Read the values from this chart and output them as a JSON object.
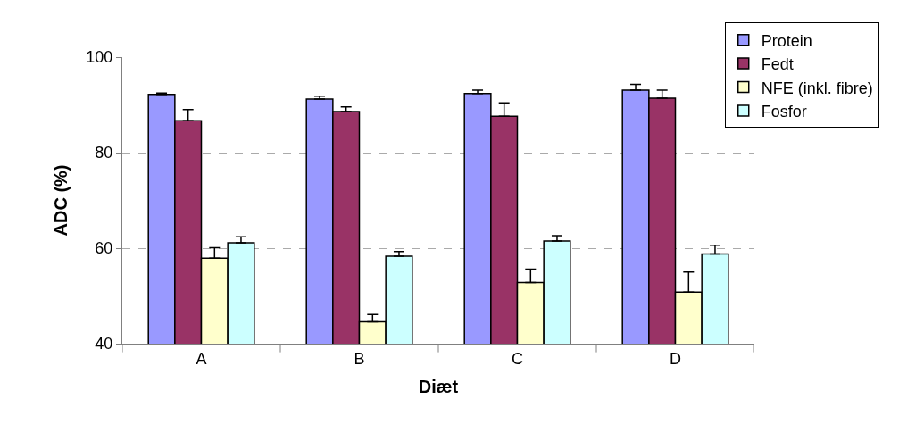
{
  "chart_data": {
    "type": "bar",
    "xlabel": "Diæt",
    "ylabel": "ADC (%)",
    "categories": [
      "A",
      "B",
      "C",
      "D"
    ],
    "series": [
      {
        "name": "Protein",
        "color": "#9999ff",
        "values": [
          92.2,
          91.2,
          92.4,
          93.1
        ],
        "errors": [
          [
            92.2,
            92.5
          ],
          [
            91.2,
            91.8
          ],
          [
            92.4,
            93.1
          ],
          [
            93.1,
            94.3
          ]
        ]
      },
      {
        "name": "Fedt",
        "color": "#993366",
        "values": [
          86.7,
          88.6,
          87.6,
          91.4
        ],
        "errors": [
          [
            86.7,
            89.0
          ],
          [
            88.6,
            89.6
          ],
          [
            87.6,
            90.4
          ],
          [
            91.4,
            93.1
          ]
        ]
      },
      {
        "name": "NFE (inkl. fibre)",
        "color": "#ffffcc",
        "values": [
          57.9,
          44.6,
          52.8,
          50.8
        ],
        "errors": [
          [
            57.9,
            60.1
          ],
          [
            44.6,
            46.1
          ],
          [
            52.8,
            55.6
          ],
          [
            50.8,
            55.0
          ]
        ]
      },
      {
        "name": "Fosfor",
        "color": "#ccffff",
        "values": [
          61.1,
          58.3,
          61.5,
          58.8
        ],
        "errors": [
          [
            61.1,
            62.4
          ],
          [
            58.3,
            59.3
          ],
          [
            61.5,
            62.6
          ],
          [
            58.8,
            60.6
          ]
        ]
      }
    ],
    "ylim": [
      40,
      100
    ],
    "yticks": [
      40,
      60,
      80,
      100
    ],
    "grid": "y",
    "legend": "top right"
  }
}
